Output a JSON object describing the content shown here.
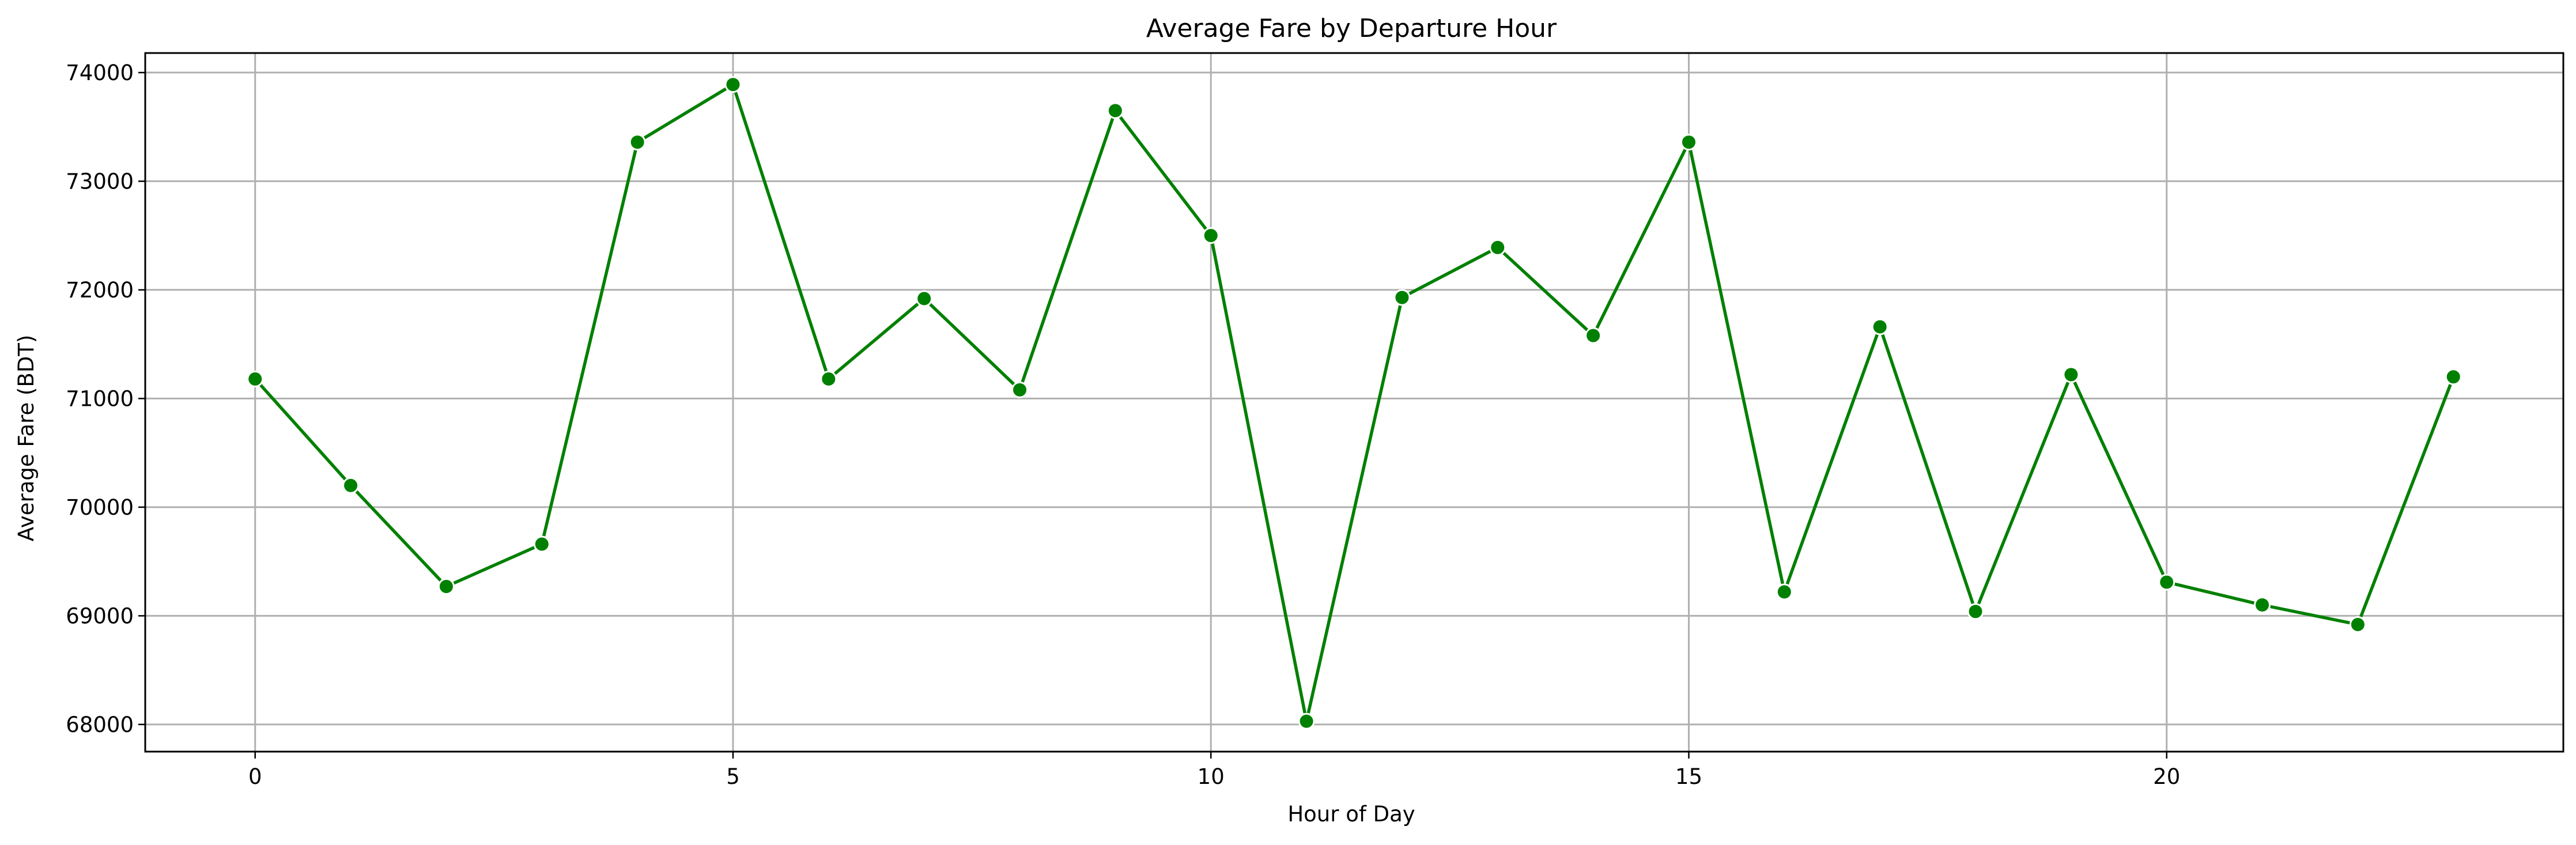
{
  "chart_data": {
    "type": "line",
    "title": "Average Fare by Departure Hour",
    "xlabel": "Hour of Day",
    "ylabel": "Average Fare (BDT)",
    "xlim": [
      -1.15,
      24.15
    ],
    "ylim": [
      67750,
      74180
    ],
    "x_ticks": [
      0,
      5,
      10,
      15,
      20
    ],
    "y_ticks": [
      68000,
      69000,
      70000,
      71000,
      72000,
      73000,
      74000
    ],
    "grid": true,
    "color": "#008000",
    "x": [
      0,
      1,
      2,
      3,
      4,
      5,
      6,
      7,
      8,
      9,
      10,
      11,
      12,
      13,
      14,
      15,
      16,
      17,
      18,
      19,
      20,
      21,
      22,
      23
    ],
    "values": [
      71180,
      70200,
      69270,
      69660,
      73360,
      73890,
      71180,
      71920,
      71080,
      73650,
      72500,
      68030,
      71930,
      72390,
      71580,
      73360,
      69220,
      71660,
      69040,
      71220,
      69310,
      69100,
      68920,
      71200
    ]
  }
}
